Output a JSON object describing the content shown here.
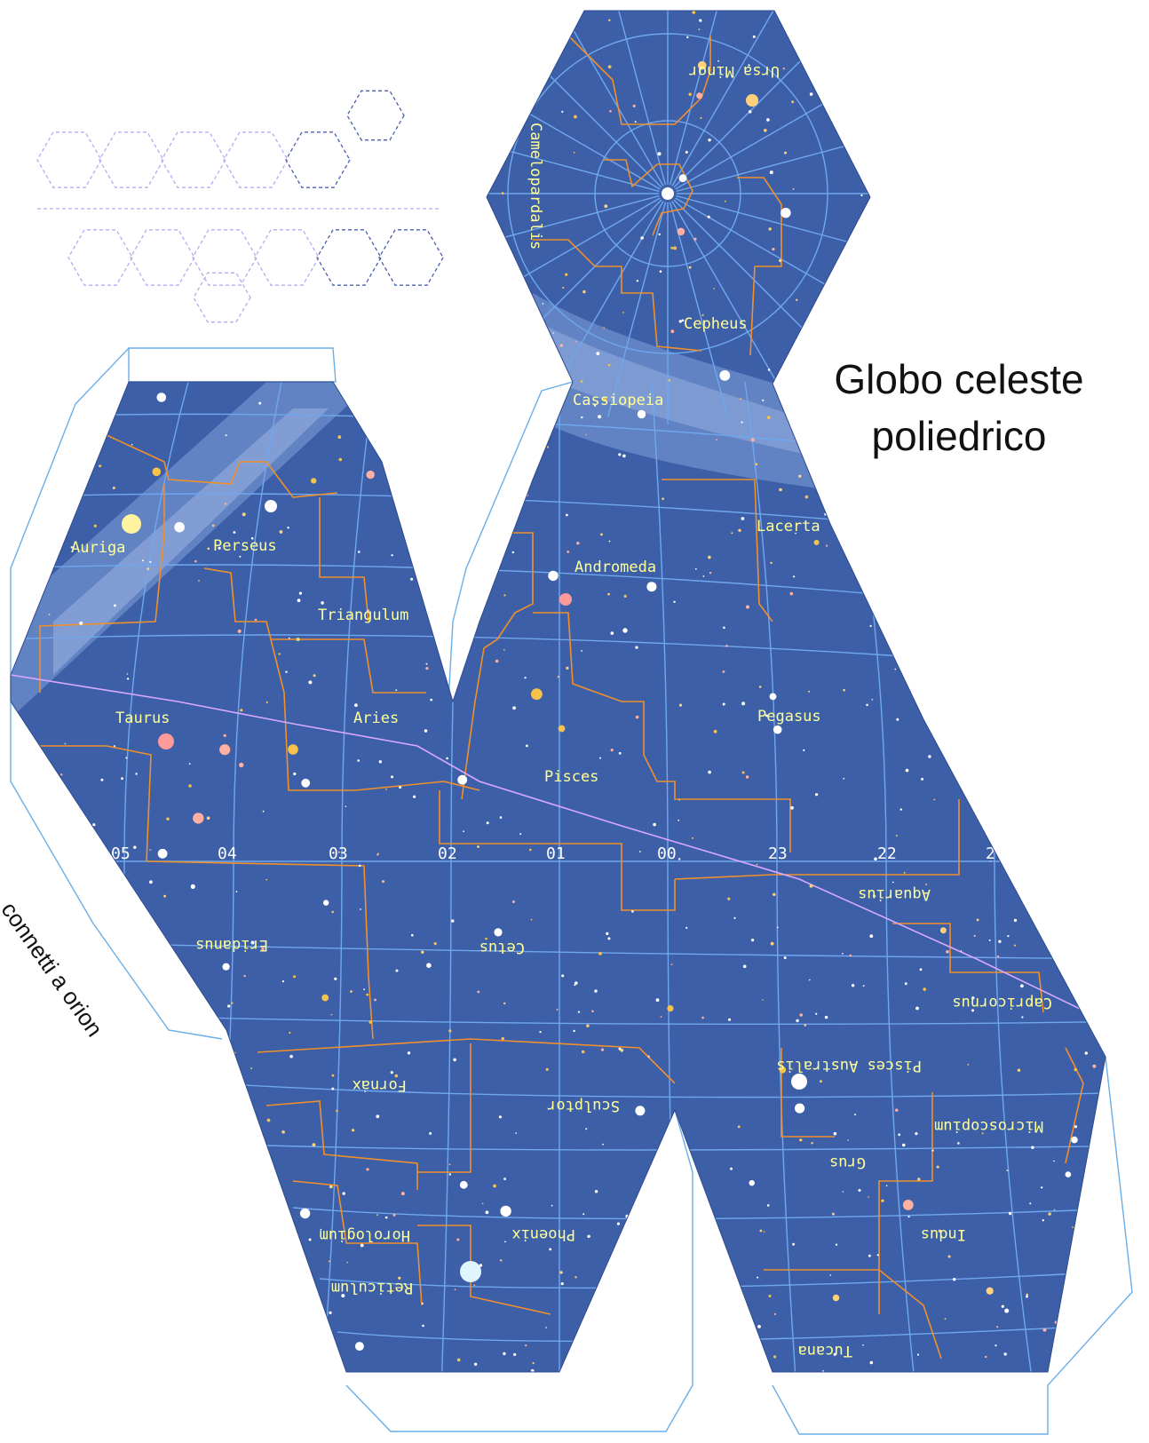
{
  "title": {
    "line1": "Globo celeste",
    "line2": "poliedrico"
  },
  "connect_note": "connetti a orion",
  "colors": {
    "sky": "#3d5fa8",
    "grid": "#6fa8ee",
    "boundary": "#f0902a",
    "ecliptic": "#d9a8ff",
    "milky_way": "#7f9ed8",
    "label": "#ffff99",
    "outline": "#5aa0e8"
  },
  "ra_hours": [
    "05",
    "04",
    "03",
    "02",
    "01",
    "00",
    "23",
    "22",
    "2"
  ],
  "constellations": [
    {
      "name": "Ursa Minor",
      "upside_down": true
    },
    {
      "name": "Camelopardalis",
      "rotated": true
    },
    {
      "name": "Cepheus"
    },
    {
      "name": "Cassiopeia"
    },
    {
      "name": "Lacerta"
    },
    {
      "name": "Auriga"
    },
    {
      "name": "Perseus"
    },
    {
      "name": "Andromeda"
    },
    {
      "name": "Triangulum"
    },
    {
      "name": "Taurus"
    },
    {
      "name": "Aries"
    },
    {
      "name": "Pegasus"
    },
    {
      "name": "Pisces"
    },
    {
      "name": "Aquarius",
      "upside_down": true
    },
    {
      "name": "Eridanus",
      "upside_down": true
    },
    {
      "name": "Cetus",
      "upside_down": true
    },
    {
      "name": "Capricornus",
      "upside_down": true
    },
    {
      "name": "Pisces Australis",
      "upside_down": true
    },
    {
      "name": "Fornax",
      "upside_down": true
    },
    {
      "name": "Sculptor",
      "upside_down": true
    },
    {
      "name": "Microscopium",
      "upside_down": true
    },
    {
      "name": "Grus",
      "upside_down": true
    },
    {
      "name": "Horologium",
      "upside_down": true
    },
    {
      "name": "Phoenix",
      "upside_down": true
    },
    {
      "name": "Indus",
      "upside_down": true
    },
    {
      "name": "Reticulum",
      "upside_down": true
    },
    {
      "name": "Tucana",
      "upside_down": true
    }
  ]
}
